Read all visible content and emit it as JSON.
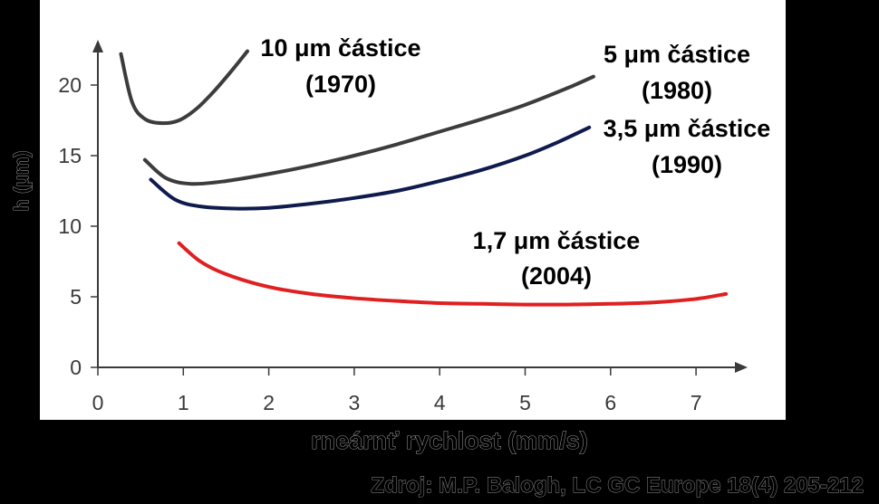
{
  "chart_data": {
    "type": "line",
    "xlabel": "rneárnť rychlost (mm/s)",
    "ylabel": "h (μm)",
    "xlim": [
      0,
      7.6
    ],
    "ylim": [
      0,
      22.5
    ],
    "x_ticks": [
      "0",
      "1",
      "2",
      "3",
      "4",
      "5",
      "6",
      "7"
    ],
    "y_ticks": [
      "0",
      "5",
      "10",
      "15",
      "20"
    ],
    "grid": false,
    "series": [
      {
        "name": "10 μm částice",
        "year": "(1970)",
        "color": "#3c3c3c",
        "x": [
          0.27,
          0.4,
          0.55,
          0.75,
          0.95,
          1.15,
          1.35,
          1.55,
          1.75
        ],
        "y": [
          22.2,
          18.8,
          17.6,
          17.3,
          17.5,
          18.3,
          19.5,
          20.9,
          22.4
        ]
      },
      {
        "name": "5 μm částice",
        "year": "(1980)",
        "color": "#3c3c3c",
        "x": [
          0.55,
          0.8,
          1.1,
          1.5,
          2.0,
          2.5,
          3.0,
          3.5,
          4.0,
          4.5,
          5.0,
          5.5,
          5.8
        ],
        "y": [
          14.7,
          13.4,
          13.0,
          13.2,
          13.7,
          14.3,
          15.0,
          15.8,
          16.7,
          17.6,
          18.6,
          19.8,
          20.6
        ]
      },
      {
        "name": "3,5 μm částice",
        "year": "(1990)",
        "color": "#0f1a4d",
        "x": [
          0.62,
          0.9,
          1.2,
          1.6,
          2.0,
          2.5,
          3.0,
          3.5,
          4.0,
          4.5,
          5.0,
          5.4,
          5.75
        ],
        "y": [
          13.3,
          11.9,
          11.4,
          11.25,
          11.3,
          11.6,
          12.0,
          12.5,
          13.2,
          14.0,
          15.0,
          16.0,
          17.0
        ]
      },
      {
        "name": "1,7 μm částice",
        "year": "(2004)",
        "color": "#e02020",
        "x": [
          0.95,
          1.2,
          1.5,
          2.0,
          2.5,
          3.0,
          3.5,
          4.0,
          4.5,
          5.0,
          5.5,
          6.0,
          6.5,
          7.0,
          7.35
        ],
        "y": [
          8.8,
          7.5,
          6.6,
          5.7,
          5.2,
          4.9,
          4.7,
          4.55,
          4.5,
          4.45,
          4.45,
          4.5,
          4.6,
          4.85,
          5.2
        ]
      }
    ]
  },
  "source": "Zdroj: M.P. Balogh, LC GC Europe 18(4) 205-212"
}
